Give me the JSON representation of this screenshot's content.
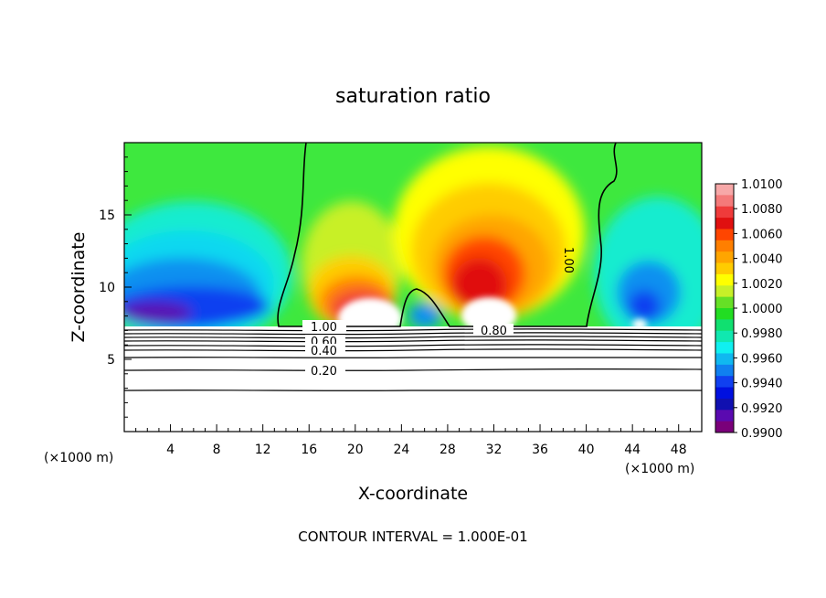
{
  "chart_data": {
    "type": "heatmap",
    "title": "saturation ratio",
    "xlabel": "X-coordinate",
    "ylabel": "Z-coordinate",
    "x_unit": "(×1000 m)",
    "x_unit_right": "(×1000 m)",
    "xlim": [
      0,
      50
    ],
    "ylim": [
      0,
      20
    ],
    "x_ticks": [
      4,
      8,
      12,
      16,
      20,
      24,
      28,
      32,
      36,
      40,
      44,
      48
    ],
    "y_ticks": [
      5,
      10,
      15
    ],
    "colorbar": {
      "min": 0.99,
      "max": 1.01,
      "ticks": [
        "1.0100",
        "1.0080",
        "1.0060",
        "1.0040",
        "1.0020",
        "1.0000",
        "0.9980",
        "0.9960",
        "0.9940",
        "0.9920",
        "0.9900"
      ],
      "colors": [
        "#f7a8a8",
        "#f47a7a",
        "#ef3b3b",
        "#e01010",
        "#ff4500",
        "#ff7f00",
        "#ffa500",
        "#ffcc00",
        "#ffff00",
        "#c8f028",
        "#66e026",
        "#22dd22",
        "#10e070",
        "#10e8b0",
        "#10f0f0",
        "#10b8f0",
        "#1080f0",
        "#1040f0",
        "#0010e0",
        "#1010b0",
        "#5a0ab0",
        "#7a007a"
      ]
    },
    "contour_labels": [
      "1.00",
      "0.80",
      "0.60",
      "0.40",
      "0.20",
      "1.00",
      "0.80"
    ],
    "annotation": "CONTOUR INTERVAL = 1.000E-01",
    "grid": false
  }
}
